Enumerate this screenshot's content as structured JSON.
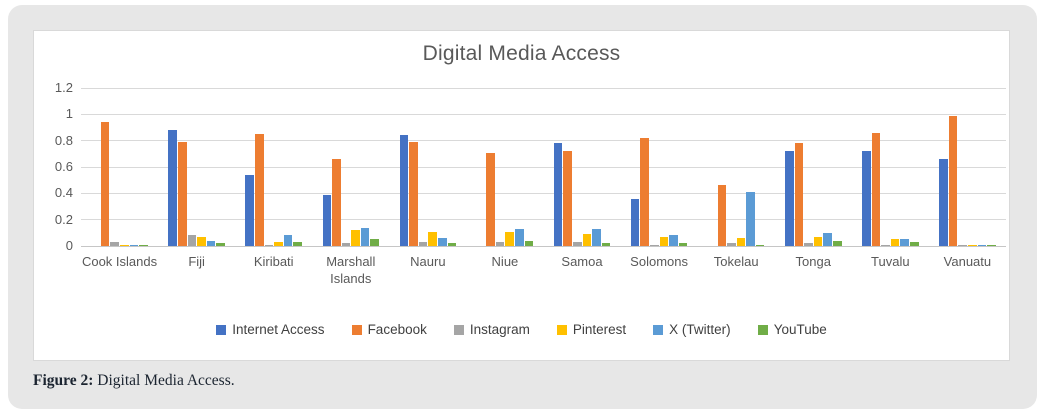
{
  "figure": {
    "caption_prefix": "Figure 2:",
    "caption_text": " Digital Media Access."
  },
  "chart_data": {
    "type": "bar",
    "title": "Digital Media Access",
    "xlabel": "",
    "ylabel": "",
    "grid": true,
    "legend_position": "bottom",
    "y_axis": {
      "min": 0,
      "max": 1.2,
      "tick_interval": 0.2,
      "tick_labels": [
        "0",
        "0.2",
        "0.4",
        "0.6",
        "0.8",
        "1",
        "1.2"
      ]
    },
    "categories": [
      "Cook Islands",
      "Fiji",
      "Kiribati",
      "Marshall Islands",
      "Nauru",
      "Niue",
      "Samoa",
      "Solomons",
      "Tokelau",
      "Tonga",
      "Tuvalu",
      "Vanuatu"
    ],
    "series": [
      {
        "name": "Internet Access",
        "color": "#4472C4",
        "values": [
          0,
          0.88,
          0.54,
          0.39,
          0.84,
          0,
          0.78,
          0.36,
          0,
          0.72,
          0.72,
          0.66
        ]
      },
      {
        "name": "Facebook",
        "color": "#ED7D31",
        "values": [
          0.94,
          0.79,
          0.85,
          0.66,
          0.79,
          0.71,
          0.72,
          0.82,
          0.46,
          0.78,
          0.86,
          0.99
        ]
      },
      {
        "name": "Instagram",
        "color": "#A5A5A5",
        "values": [
          0.03,
          0.08,
          0.01,
          0.02,
          0.03,
          0.03,
          0.03,
          0.01,
          0.02,
          0.02,
          0.01,
          0.01
        ]
      },
      {
        "name": "Pinterest",
        "color": "#FFC000",
        "values": [
          0.01,
          0.07,
          0.03,
          0.12,
          0.11,
          0.11,
          0.09,
          0.07,
          0.06,
          0.07,
          0.05,
          0.01
        ]
      },
      {
        "name": "X (Twitter)",
        "color": "#5B9BD5",
        "values": [
          0.01,
          0.04,
          0.08,
          0.14,
          0.06,
          0.13,
          0.13,
          0.08,
          0.41,
          0.1,
          0.05,
          0.01
        ]
      },
      {
        "name": "YouTube",
        "color": "#70AD47",
        "values": [
          0.01,
          0.02,
          0.03,
          0.05,
          0.02,
          0.04,
          0.02,
          0.02,
          0.01,
          0.04,
          0.03,
          0.01
        ]
      }
    ]
  },
  "colors": {
    "card_background": "#E7E7E7",
    "panel_background": "#FFFFFF",
    "panel_border": "#D9D9D9",
    "title": "#595959",
    "axis_labels": "#595959",
    "gridlines": "#D9D9D9",
    "legend_text": "#404040",
    "caption_text": "#1B2430"
  }
}
